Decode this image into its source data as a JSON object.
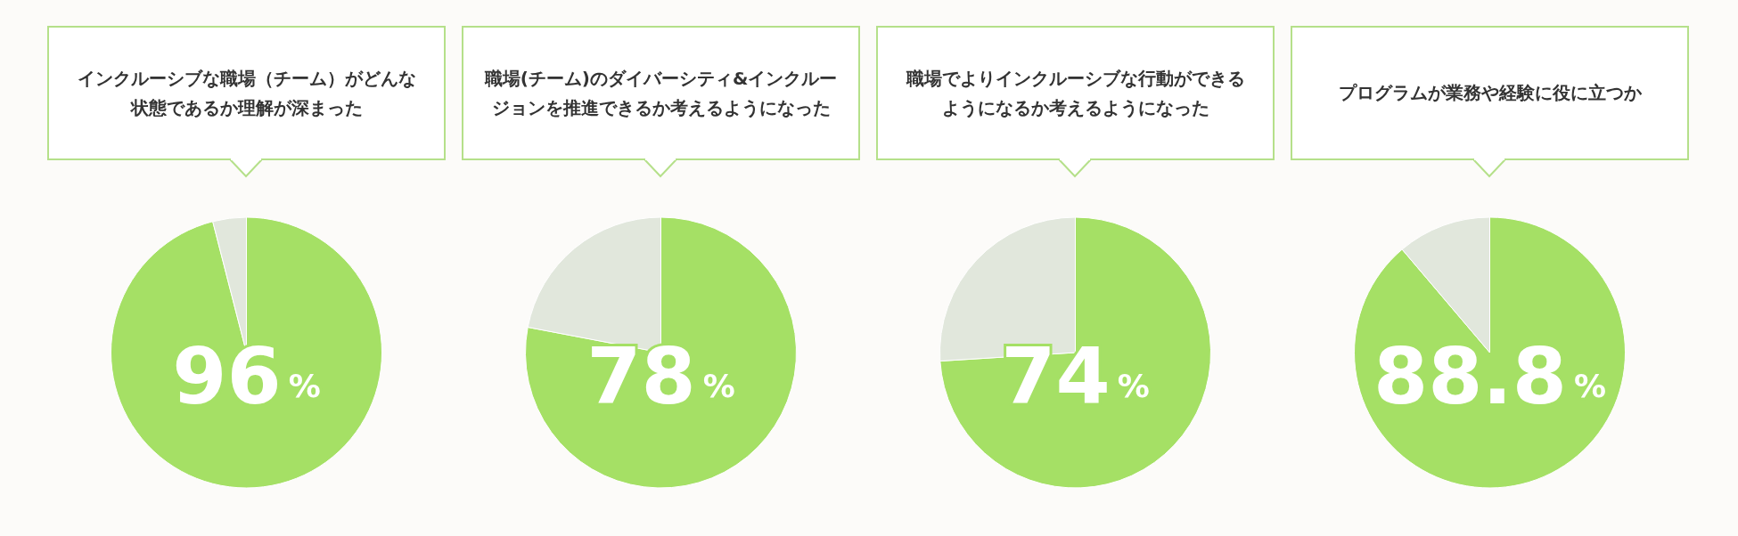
{
  "chart_data": [
    {
      "type": "pie",
      "title": "インクルーシブな職場（チーム）がどんな状態であるか理解が深まった",
      "categories": [
        null,
        null
      ],
      "values": [
        96,
        4
      ],
      "colors": [
        "#a5e065",
        "#e1e7dc"
      ],
      "value_labels": [
        "96%",
        null
      ]
    },
    {
      "type": "pie",
      "title": "職場(チーム)のダイバーシティ&インクルージョンを推進できるか考えるようになった",
      "categories": [
        null,
        null
      ],
      "values": [
        78,
        22
      ],
      "colors": [
        "#a5e065",
        "#e1e7dc"
      ],
      "value_labels": [
        "78%",
        null
      ]
    },
    {
      "type": "pie",
      "title": "職場でよりインクルーシブな行動ができるようになるか考えるようになった",
      "categories": [
        null,
        null
      ],
      "values": [
        74,
        26
      ],
      "colors": [
        "#a5e065",
        "#e1e7dc"
      ],
      "value_labels": [
        "74%",
        null
      ]
    },
    {
      "type": "pie",
      "title": "プログラムが業務や経験に役に立つか",
      "categories": [
        null,
        null
      ],
      "values": [
        88.8,
        11.2
      ],
      "colors": [
        "#a5e065",
        "#e1e7dc"
      ],
      "value_labels": [
        "88.8%",
        null
      ]
    }
  ]
}
